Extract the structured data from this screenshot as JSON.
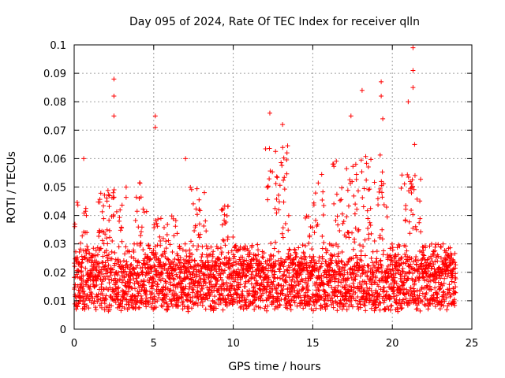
{
  "chart_data": {
    "type": "scatter",
    "title": "Day 095 of 2024, Rate Of TEC Index for receiver qlln",
    "xlabel": "GPS time / hours",
    "ylabel": "ROTI / TECUs",
    "xlim": [
      0,
      25
    ],
    "ylim": [
      0,
      0.1
    ],
    "x_ticks": [
      0,
      5,
      10,
      15,
      20,
      25
    ],
    "x_tick_labels": [
      "0",
      "5",
      "10",
      "15",
      "20",
      "25"
    ],
    "y_ticks": [
      0,
      0.01,
      0.02,
      0.03,
      0.04,
      0.05,
      0.06,
      0.07,
      0.08,
      0.09,
      0.1
    ],
    "y_tick_labels": [
      "0",
      "0.01",
      "0.02",
      "0.03",
      "0.04",
      "0.05",
      "0.06",
      "0.07",
      "0.08",
      "0.09",
      "0.1"
    ],
    "grid": true,
    "marker": "+",
    "point_color": "#ff0000",
    "data_range_x": [
      0,
      24
    ],
    "baseline_band": [
      0.008,
      0.025
    ],
    "notable_points": [
      {
        "x": 0.6,
        "y": 0.06
      },
      {
        "x": 2.5,
        "y": 0.088
      },
      {
        "x": 2.5,
        "y": 0.082
      },
      {
        "x": 2.5,
        "y": 0.075
      },
      {
        "x": 5.1,
        "y": 0.075
      },
      {
        "x": 5.1,
        "y": 0.071
      },
      {
        "x": 7.0,
        "y": 0.06
      },
      {
        "x": 12.3,
        "y": 0.076
      },
      {
        "x": 13.1,
        "y": 0.072
      },
      {
        "x": 17.4,
        "y": 0.075
      },
      {
        "x": 18.1,
        "y": 0.084
      },
      {
        "x": 19.3,
        "y": 0.087
      },
      {
        "x": 19.3,
        "y": 0.082
      },
      {
        "x": 19.4,
        "y": 0.074
      },
      {
        "x": 21.3,
        "y": 0.099
      },
      {
        "x": 21.3,
        "y": 0.091
      },
      {
        "x": 21.3,
        "y": 0.085
      },
      {
        "x": 21.0,
        "y": 0.08
      },
      {
        "x": 21.4,
        "y": 0.065
      }
    ],
    "active_windows": [
      {
        "x": [
          0.0,
          0.8
        ],
        "peak": 0.045
      },
      {
        "x": [
          1.5,
          3.3
        ],
        "peak": 0.05
      },
      {
        "x": [
          3.8,
          4.6
        ],
        "peak": 0.052
      },
      {
        "x": [
          5.0,
          6.5
        ],
        "peak": 0.04
      },
      {
        "x": [
          7.3,
          8.3
        ],
        "peak": 0.05
      },
      {
        "x": [
          9.2,
          10.0
        ],
        "peak": 0.045
      },
      {
        "x": [
          12.0,
          13.5
        ],
        "peak": 0.065
      },
      {
        "x": [
          14.5,
          15.7
        ],
        "peak": 0.055
      },
      {
        "x": [
          16.2,
          17.9
        ],
        "peak": 0.06
      },
      {
        "x": [
          18.0,
          19.7
        ],
        "peak": 0.062
      },
      {
        "x": [
          20.5,
          21.8
        ],
        "peak": 0.055
      }
    ]
  },
  "colors": {
    "points": "#ff0000",
    "grid": "#a0a0a0",
    "axis": "#000000",
    "background": "#ffffff"
  }
}
